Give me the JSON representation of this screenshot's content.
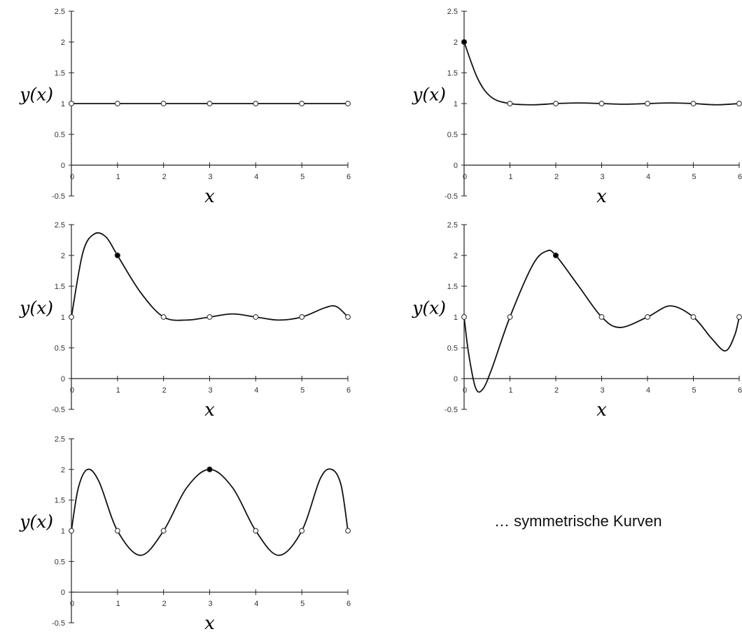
{
  "chart_data": [
    {
      "type": "line",
      "ylabel": "y(x)",
      "xlabel": "x",
      "xlim": [
        0,
        6
      ],
      "ylim": [
        -0.5,
        2.5
      ],
      "x_ticks": [
        "0",
        "1",
        "2",
        "3",
        "4",
        "5",
        "6"
      ],
      "y_ticks": [
        "-0.5",
        "0",
        "0.5",
        "1",
        "1.5",
        "2",
        "2.5"
      ],
      "grid": false,
      "curve": [
        [
          0,
          1
        ],
        [
          1,
          1
        ],
        [
          2,
          1
        ],
        [
          3,
          1
        ],
        [
          4,
          1
        ],
        [
          5,
          1
        ],
        [
          6,
          1
        ]
      ],
      "markers": [
        {
          "x": 0,
          "y": 1,
          "filled": false
        },
        {
          "x": 1,
          "y": 1,
          "filled": false
        },
        {
          "x": 2,
          "y": 1,
          "filled": false
        },
        {
          "x": 3,
          "y": 1,
          "filled": false
        },
        {
          "x": 4,
          "y": 1,
          "filled": false
        },
        {
          "x": 5,
          "y": 1,
          "filled": false
        },
        {
          "x": 6,
          "y": 1,
          "filled": false
        }
      ]
    },
    {
      "type": "line",
      "ylabel": "y(x)",
      "xlabel": "x",
      "xlim": [
        0,
        6
      ],
      "ylim": [
        -0.5,
        2.5
      ],
      "x_ticks": [
        "0",
        "1",
        "2",
        "3",
        "4",
        "5",
        "6"
      ],
      "y_ticks": [
        "-0.5",
        "0",
        "0.5",
        "1",
        "1.5",
        "2",
        "2.5"
      ],
      "grid": false,
      "curve": [
        [
          0,
          2
        ],
        [
          0.3,
          1.4
        ],
        [
          0.6,
          1.1
        ],
        [
          1,
          1
        ],
        [
          1.5,
          0.98
        ],
        [
          2,
          1
        ],
        [
          2.5,
          1.01
        ],
        [
          3,
          1
        ],
        [
          3.5,
          0.99
        ],
        [
          4,
          1
        ],
        [
          4.5,
          1.01
        ],
        [
          5,
          1
        ],
        [
          5.5,
          0.98
        ],
        [
          6,
          1
        ]
      ],
      "markers": [
        {
          "x": 0,
          "y": 2,
          "filled": true
        },
        {
          "x": 1,
          "y": 1,
          "filled": false
        },
        {
          "x": 2,
          "y": 1,
          "filled": false
        },
        {
          "x": 3,
          "y": 1,
          "filled": false
        },
        {
          "x": 4,
          "y": 1,
          "filled": false
        },
        {
          "x": 5,
          "y": 1,
          "filled": false
        },
        {
          "x": 6,
          "y": 1,
          "filled": false
        }
      ]
    },
    {
      "type": "line",
      "ylabel": "y(x)",
      "xlabel": "x",
      "xlim": [
        0,
        6
      ],
      "ylim": [
        -0.5,
        2.5
      ],
      "x_ticks": [
        "0",
        "1",
        "2",
        "3",
        "4",
        "5",
        "6"
      ],
      "y_ticks": [
        "-0.5",
        "0",
        "0.5",
        "1",
        "1.5",
        "2",
        "2.5"
      ],
      "grid": false,
      "curve": [
        [
          0,
          1
        ],
        [
          0.25,
          2.05
        ],
        [
          0.5,
          2.35
        ],
        [
          0.75,
          2.3
        ],
        [
          1,
          2
        ],
        [
          1.5,
          1.4
        ],
        [
          2,
          1
        ],
        [
          2.5,
          0.95
        ],
        [
          3,
          1
        ],
        [
          3.5,
          1.05
        ],
        [
          4,
          1
        ],
        [
          4.5,
          0.95
        ],
        [
          5,
          1
        ],
        [
          5.5,
          1.15
        ],
        [
          5.75,
          1.17
        ],
        [
          6,
          1
        ]
      ],
      "markers": [
        {
          "x": 0,
          "y": 1,
          "filled": false
        },
        {
          "x": 1,
          "y": 2,
          "filled": true
        },
        {
          "x": 2,
          "y": 1,
          "filled": false
        },
        {
          "x": 3,
          "y": 1,
          "filled": false
        },
        {
          "x": 4,
          "y": 1,
          "filled": false
        },
        {
          "x": 5,
          "y": 1,
          "filled": false
        },
        {
          "x": 6,
          "y": 1,
          "filled": false
        }
      ]
    },
    {
      "type": "line",
      "ylabel": "y(x)",
      "xlabel": "x",
      "xlim": [
        0,
        6
      ],
      "ylim": [
        -0.5,
        2.5
      ],
      "x_ticks": [
        "0",
        "1",
        "2",
        "3",
        "4",
        "5",
        "6"
      ],
      "y_ticks": [
        "-0.5",
        "0",
        "0.5",
        "1",
        "1.5",
        "2",
        "2.5"
      ],
      "grid": false,
      "curve": [
        [
          0,
          1
        ],
        [
          0.1,
          0.4
        ],
        [
          0.25,
          -0.15
        ],
        [
          0.4,
          -0.18
        ],
        [
          0.6,
          0.15
        ],
        [
          1,
          1
        ],
        [
          1.5,
          1.85
        ],
        [
          1.8,
          2.07
        ],
        [
          2,
          2
        ],
        [
          2.5,
          1.5
        ],
        [
          3,
          1
        ],
        [
          3.4,
          0.83
        ],
        [
          4,
          1
        ],
        [
          4.5,
          1.18
        ],
        [
          5,
          1
        ],
        [
          5.4,
          0.65
        ],
        [
          5.7,
          0.45
        ],
        [
          5.9,
          0.7
        ],
        [
          6,
          1
        ]
      ],
      "markers": [
        {
          "x": 0,
          "y": 1,
          "filled": false
        },
        {
          "x": 1,
          "y": 1,
          "filled": false
        },
        {
          "x": 2,
          "y": 2,
          "filled": true
        },
        {
          "x": 3,
          "y": 1,
          "filled": false
        },
        {
          "x": 4,
          "y": 1,
          "filled": false
        },
        {
          "x": 5,
          "y": 1,
          "filled": false
        },
        {
          "x": 6,
          "y": 1,
          "filled": false
        }
      ]
    },
    {
      "type": "line",
      "ylabel": "y(x)",
      "xlabel": "x",
      "xlim": [
        0,
        6
      ],
      "ylim": [
        -0.5,
        2.5
      ],
      "x_ticks": [
        "0",
        "1",
        "2",
        "3",
        "4",
        "5",
        "6"
      ],
      "y_ticks": [
        "-0.5",
        "0",
        "0.5",
        "1",
        "1.5",
        "2",
        "2.5"
      ],
      "grid": false,
      "curve": [
        [
          0,
          1
        ],
        [
          0.15,
          1.7
        ],
        [
          0.35,
          2
        ],
        [
          0.6,
          1.8
        ],
        [
          1,
          1
        ],
        [
          1.5,
          0.6
        ],
        [
          2,
          1
        ],
        [
          2.5,
          1.7
        ],
        [
          3,
          2
        ],
        [
          3.5,
          1.7
        ],
        [
          4,
          1
        ],
        [
          4.5,
          0.6
        ],
        [
          5,
          1
        ],
        [
          5.4,
          1.85
        ],
        [
          5.65,
          2
        ],
        [
          5.85,
          1.75
        ],
        [
          6,
          1
        ]
      ],
      "markers": [
        {
          "x": 0,
          "y": 1,
          "filled": false
        },
        {
          "x": 1,
          "y": 1,
          "filled": false
        },
        {
          "x": 2,
          "y": 1,
          "filled": false
        },
        {
          "x": 3,
          "y": 2,
          "filled": true
        },
        {
          "x": 4,
          "y": 1,
          "filled": false
        },
        {
          "x": 5,
          "y": 1,
          "filled": false
        },
        {
          "x": 6,
          "y": 1,
          "filled": false
        }
      ]
    }
  ],
  "caption": "… symmetrische Kurven"
}
